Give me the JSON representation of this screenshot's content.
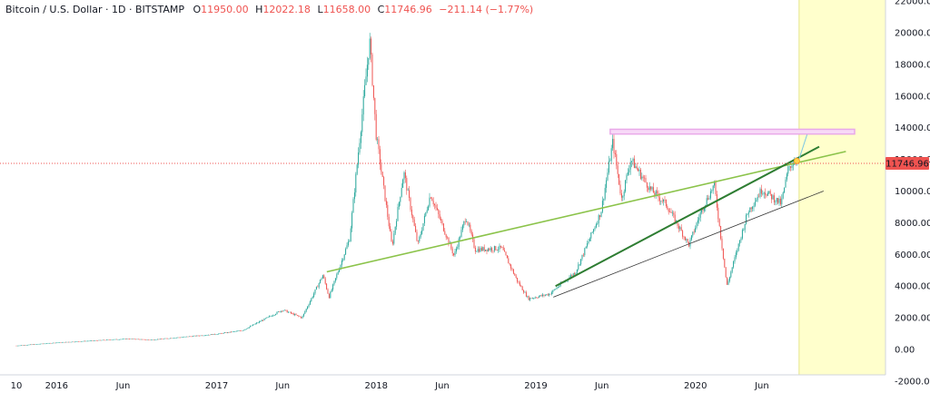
{
  "header": {
    "symbol": "Bitcoin / U.S. Dollar · 1D · BITSTAMP",
    "o_label": "O",
    "o_value": "11950.00",
    "h_label": "H",
    "h_value": "12022.18",
    "l_label": "L",
    "l_value": "11658.00",
    "c_label": "C",
    "c_value": "11746.96",
    "change": "−211.14 (−1.77%)"
  },
  "colors": {
    "up": "#26a69a",
    "down": "#ef5350",
    "trend_green": "#8bc34a",
    "trend_dark": "#2e7d32",
    "channel_black": "#333333",
    "resistance_zone": "#e9a9e9",
    "forecast_zone": "#ffffcc",
    "price_label_bg": "#ef5350"
  },
  "chart_data": {
    "type": "candlestick",
    "title": "Bitcoin / U.S. Dollar · 1D · BITSTAMP",
    "ylabel": "",
    "xlabel": "",
    "ylim": [
      -2000,
      22000
    ],
    "grid": false,
    "last_price": "11746.96",
    "y_ticks": [
      "22000.00",
      "20000.00",
      "18000.00",
      "16000.00",
      "14000.00",
      "12000.00",
      "10000.00",
      "8000.00",
      "6000.00",
      "4000.00",
      "2000.00",
      "0.00",
      "-2000.00"
    ],
    "x_ticks": [
      "10",
      "2016",
      "Jun",
      "2017",
      "Jun",
      "2018",
      "Jun",
      "2019",
      "Jun",
      "2020",
      "Jun"
    ],
    "price_path": [
      [
        "2015-10-01",
        240
      ],
      [
        "2016-01-01",
        430
      ],
      [
        "2016-06-15",
        680
      ],
      [
        "2016-08-01",
        600
      ],
      [
        "2017-01-01",
        970
      ],
      [
        "2017-03-01",
        1200
      ],
      [
        "2017-06-01",
        2500
      ],
      [
        "2017-07-15",
        2000
      ],
      [
        "2017-09-01",
        4700
      ],
      [
        "2017-09-15",
        3300
      ],
      [
        "2017-11-01",
        7000
      ],
      [
        "2017-12-17",
        19500
      ],
      [
        "2018-01-01",
        13500
      ],
      [
        "2018-02-06",
        6500
      ],
      [
        "2018-03-05",
        11200
      ],
      [
        "2018-04-06",
        6600
      ],
      [
        "2018-05-05",
        9800
      ],
      [
        "2018-06-28",
        5900
      ],
      [
        "2018-07-25",
        8400
      ],
      [
        "2018-08-15",
        6300
      ],
      [
        "2018-10-15",
        6400
      ],
      [
        "2018-11-20",
        4300
      ],
      [
        "2018-12-15",
        3200
      ],
      [
        "2019-02-01",
        3500
      ],
      [
        "2019-04-02",
        4900
      ],
      [
        "2019-05-30",
        8700
      ],
      [
        "2019-06-26",
        13100
      ],
      [
        "2019-07-16",
        9500
      ],
      [
        "2019-08-06",
        12000
      ],
      [
        "2019-09-20",
        10100
      ],
      [
        "2019-10-25",
        9200
      ],
      [
        "2019-12-17",
        6600
      ],
      [
        "2020-01-15",
        8800
      ],
      [
        "2020-02-13",
        10400
      ],
      [
        "2020-03-13",
        4000
      ],
      [
        "2020-04-30",
        8700
      ],
      [
        "2020-06-01",
        10100
      ],
      [
        "2020-07-15",
        9200
      ],
      [
        "2020-08-01",
        11500
      ],
      [
        "2020-08-17",
        12000
      ],
      [
        "2020-08-20",
        11747
      ]
    ],
    "series": [
      {
        "name": "",
        "kind": "trendline",
        "from": [
          "2017-09-10",
          4900
        ],
        "to": [
          "2020-12-10",
          12500
        ]
      },
      {
        "name": "",
        "kind": "trendline",
        "from": [
          "2019-02-15",
          4000
        ],
        "to": [
          "2020-10-10",
          12800
        ]
      },
      {
        "name": "",
        "kind": "trendline",
        "from": [
          "2019-02-10",
          3300
        ],
        "to": [
          "2020-10-20",
          10000
        ]
      },
      {
        "name": "",
        "kind": "projection",
        "from": [
          "2020-08-20",
          11600
        ],
        "to": [
          "2020-09-15",
          13800
        ]
      },
      {
        "name": "",
        "kind": "resistance_zone",
        "from": [
          "2019-06-20",
          13600
        ],
        "to": [
          "2020-12-30",
          13900
        ]
      }
    ],
    "forecast_region_start": "2020-08-25"
  }
}
